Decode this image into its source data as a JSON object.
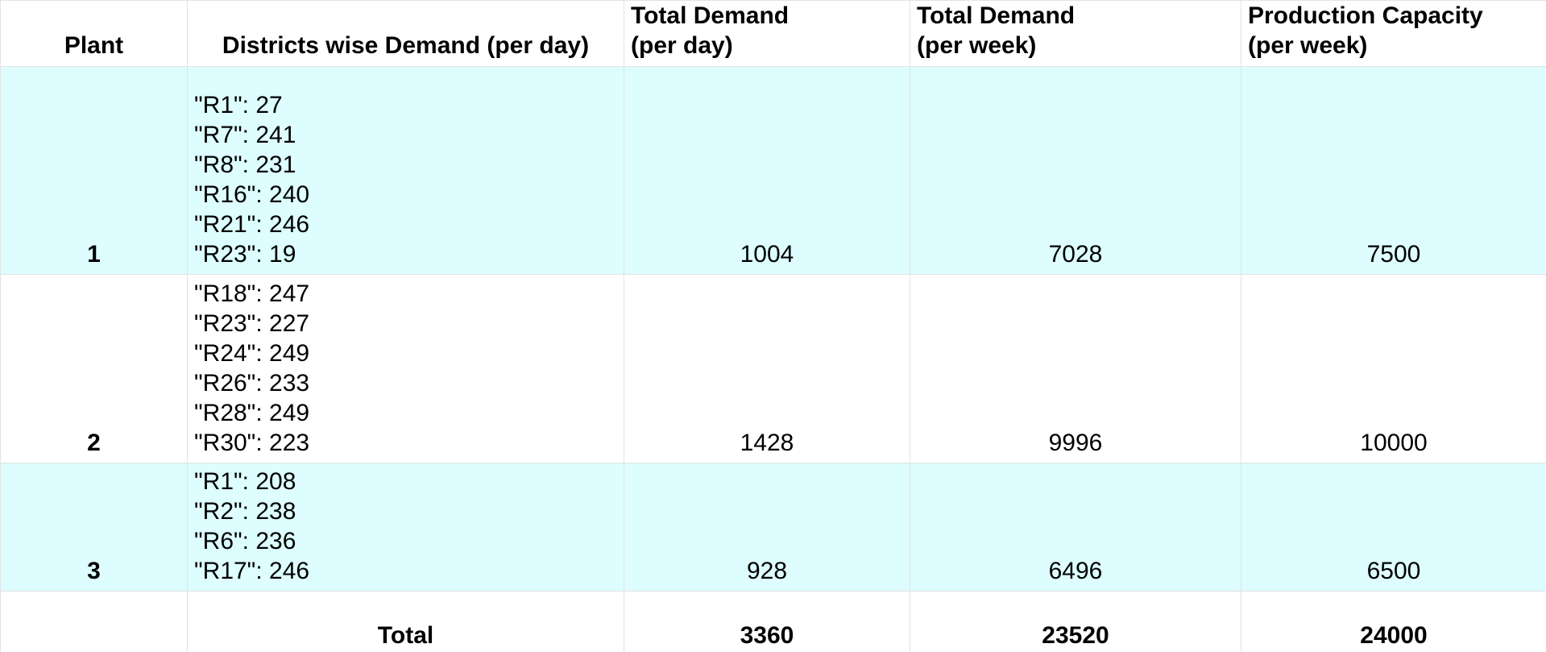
{
  "headers": {
    "plant": "Plant",
    "districts": "Districts wise Demand (per day)",
    "total_day": [
      "Total Demand",
      "(per day)"
    ],
    "total_week": [
      "Total Demand",
      "(per week)"
    ],
    "capacity": [
      "Production Capacity",
      "(per week)"
    ]
  },
  "rows": [
    {
      "plant": "1",
      "districts": [
        "\"R1\": 27",
        "\"R7\": 241",
        "\"R8\": 231",
        "\"R16\": 240",
        "\"R21\": 246",
        "\"R23\": 19"
      ],
      "total_day": "1004",
      "total_week": "7028",
      "capacity": "7500"
    },
    {
      "plant": "2",
      "districts": [
        "\"R18\": 247",
        "\"R23\": 227",
        "\"R24\": 249",
        "\"R26\": 233",
        "\"R28\": 249",
        "\"R30\": 223"
      ],
      "total_day": "1428",
      "total_week": "9996",
      "capacity": "10000"
    },
    {
      "plant": "3",
      "districts": [
        "\"R1\": 208",
        "\"R2\": 238",
        "\"R6\": 236",
        "\"R17\": 246"
      ],
      "total_day": "928",
      "total_week": "6496",
      "capacity": "6500"
    }
  ],
  "total": {
    "plant": "",
    "label": "Total",
    "total_day": "3360",
    "total_week": "23520",
    "capacity": "24000"
  },
  "colors": {
    "row_shade": "#ddfdfe",
    "grid_line": "#e2e3e3"
  }
}
